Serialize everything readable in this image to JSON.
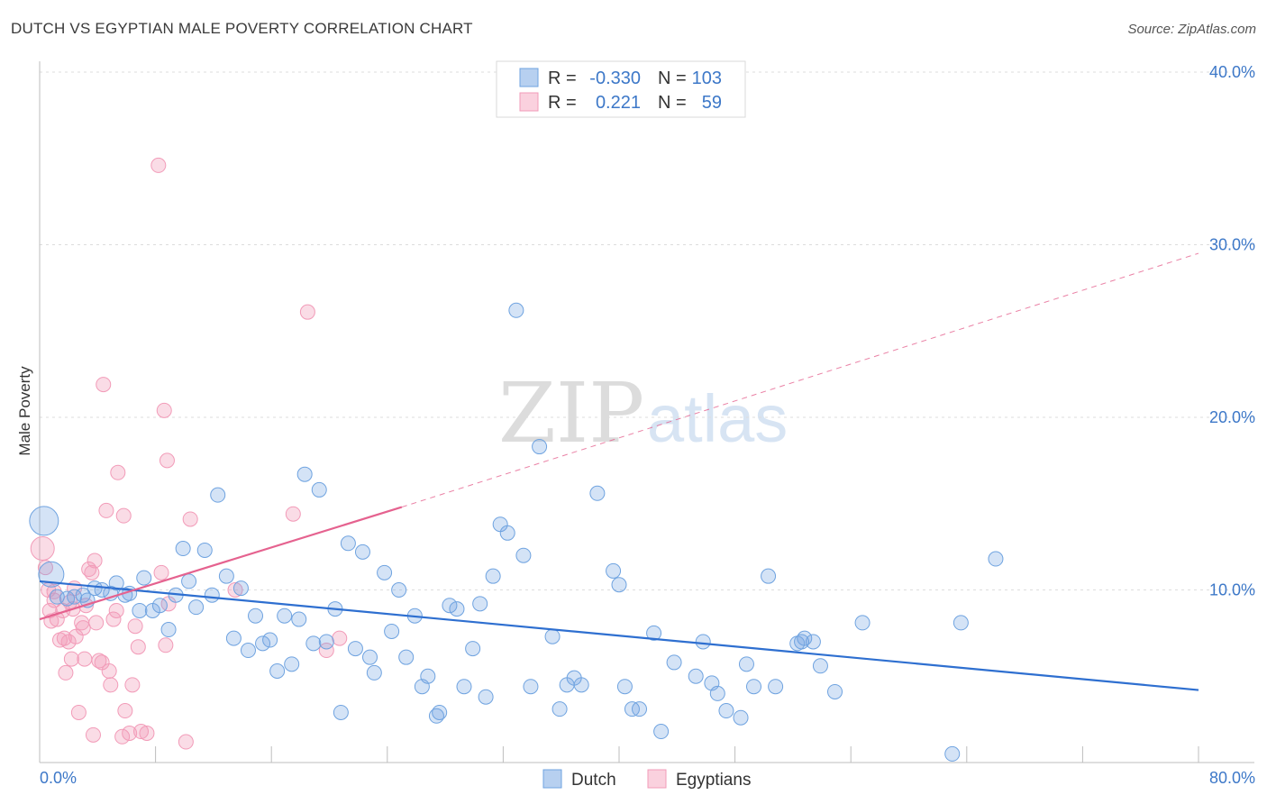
{
  "title": "DUTCH VS EGYPTIAN MALE POVERTY CORRELATION CHART",
  "source": "Source: ZipAtlas.com",
  "watermark": {
    "part1": "ZIP",
    "part2": "atlas"
  },
  "legend": {
    "rows": [
      {
        "r_label": "R =",
        "r_value": "-0.330",
        "n_label": "N =",
        "n_value": "103"
      },
      {
        "r_label": "R =",
        "r_value": "0.221",
        "n_label": "N =",
        "n_value": "59"
      }
    ]
  },
  "bottom_legend": [
    "Dutch",
    "Egyptians"
  ],
  "chart_data": {
    "type": "scatter",
    "title": "DUTCH VS EGYPTIAN MALE POVERTY CORRELATION CHART",
    "xlabel": "",
    "ylabel": "Male Poverty",
    "xlim": [
      0,
      80
    ],
    "ylim": [
      0,
      40
    ],
    "x_tick_labels": [
      "0.0%",
      "80.0%"
    ],
    "y_ticks": [
      10,
      20,
      30,
      40
    ],
    "y_tick_labels": [
      "10.0%",
      "20.0%",
      "30.0%",
      "40.0%"
    ],
    "grid": true,
    "legend_position": "top-center",
    "colors": {
      "dutch": "#6fa3e0",
      "egyptians": "#f29bb8",
      "dutch_line": "#2e6fd0",
      "egyptians_line": "#e5628f"
    },
    "series": [
      {
        "name": "Dutch",
        "r": -0.33,
        "n": 103,
        "trend": {
          "x": [
            0,
            80
          ],
          "y": [
            10.5,
            4.2
          ]
        },
        "points": [
          [
            0.3,
            14.0
          ],
          [
            0.8,
            10.9
          ],
          [
            1.2,
            9.6
          ],
          [
            1.9,
            9.5
          ],
          [
            2.4,
            9.6
          ],
          [
            3.0,
            9.7
          ],
          [
            3.3,
            9.4
          ],
          [
            3.8,
            10.1
          ],
          [
            4.3,
            10.0
          ],
          [
            4.9,
            9.8
          ],
          [
            5.3,
            10.4
          ],
          [
            5.9,
            9.7
          ],
          [
            6.2,
            9.8
          ],
          [
            6.9,
            8.8
          ],
          [
            7.2,
            10.7
          ],
          [
            7.8,
            8.8
          ],
          [
            8.3,
            9.1
          ],
          [
            8.9,
            7.7
          ],
          [
            9.4,
            9.7
          ],
          [
            9.9,
            12.4
          ],
          [
            10.3,
            10.5
          ],
          [
            10.8,
            9.0
          ],
          [
            11.4,
            12.3
          ],
          [
            11.9,
            9.7
          ],
          [
            12.3,
            15.5
          ],
          [
            12.9,
            10.8
          ],
          [
            13.4,
            7.2
          ],
          [
            13.9,
            10.1
          ],
          [
            14.4,
            6.5
          ],
          [
            14.9,
            8.5
          ],
          [
            15.4,
            6.9
          ],
          [
            15.9,
            7.1
          ],
          [
            16.4,
            5.3
          ],
          [
            16.9,
            8.5
          ],
          [
            17.4,
            5.7
          ],
          [
            17.9,
            8.3
          ],
          [
            18.3,
            16.7
          ],
          [
            18.9,
            6.9
          ],
          [
            19.3,
            15.8
          ],
          [
            19.8,
            7.0
          ],
          [
            20.4,
            8.9
          ],
          [
            20.8,
            2.9
          ],
          [
            21.3,
            12.7
          ],
          [
            21.8,
            6.6
          ],
          [
            22.3,
            12.2
          ],
          [
            22.8,
            6.1
          ],
          [
            23.1,
            5.2
          ],
          [
            23.8,
            11.0
          ],
          [
            24.3,
            7.6
          ],
          [
            24.8,
            10.0
          ],
          [
            25.3,
            6.1
          ],
          [
            25.9,
            8.5
          ],
          [
            26.4,
            4.4
          ],
          [
            26.8,
            5.0
          ],
          [
            27.4,
            2.7
          ],
          [
            27.6,
            2.9
          ],
          [
            28.3,
            9.1
          ],
          [
            28.8,
            8.9
          ],
          [
            29.3,
            4.4
          ],
          [
            29.9,
            6.6
          ],
          [
            30.4,
            9.2
          ],
          [
            30.8,
            3.8
          ],
          [
            31.3,
            10.8
          ],
          [
            31.8,
            13.8
          ],
          [
            32.3,
            13.3
          ],
          [
            32.9,
            26.2
          ],
          [
            33.4,
            12.0
          ],
          [
            33.9,
            4.4
          ],
          [
            34.5,
            18.3
          ],
          [
            35.4,
            7.3
          ],
          [
            35.9,
            3.1
          ],
          [
            36.4,
            4.5
          ],
          [
            36.9,
            4.9
          ],
          [
            37.4,
            4.5
          ],
          [
            38.5,
            15.6
          ],
          [
            39.6,
            11.1
          ],
          [
            40.0,
            10.3
          ],
          [
            40.4,
            4.4
          ],
          [
            40.9,
            3.1
          ],
          [
            41.4,
            3.1
          ],
          [
            42.4,
            7.5
          ],
          [
            42.9,
            1.8
          ],
          [
            43.8,
            5.8
          ],
          [
            45.3,
            5.0
          ],
          [
            45.8,
            7.0
          ],
          [
            46.4,
            4.6
          ],
          [
            46.8,
            4.0
          ],
          [
            47.4,
            3.0
          ],
          [
            48.4,
            2.6
          ],
          [
            48.8,
            5.7
          ],
          [
            49.3,
            4.4
          ],
          [
            50.3,
            10.8
          ],
          [
            50.8,
            4.4
          ],
          [
            52.3,
            6.9
          ],
          [
            52.8,
            7.2
          ],
          [
            53.4,
            7.0
          ],
          [
            53.9,
            5.6
          ],
          [
            54.9,
            4.1
          ],
          [
            56.8,
            8.1
          ],
          [
            63.0,
            0.5
          ],
          [
            63.6,
            8.1
          ],
          [
            66.0,
            11.8
          ],
          [
            52.6,
            7.0
          ]
        ]
      },
      {
        "name": "Egyptians",
        "r": 0.221,
        "n": 59,
        "trend": {
          "x": [
            0,
            25
          ],
          "y": [
            8.3,
            14.8
          ],
          "dashed_extension": {
            "x": [
              25,
              80
            ],
            "y": [
              14.8,
              29.5
            ]
          }
        },
        "points": [
          [
            0.2,
            12.4
          ],
          [
            0.4,
            11.3
          ],
          [
            0.6,
            10.0
          ],
          [
            0.8,
            8.2
          ],
          [
            1.0,
            9.9
          ],
          [
            1.2,
            8.3
          ],
          [
            1.4,
            7.1
          ],
          [
            1.6,
            8.8
          ],
          [
            1.7,
            7.2
          ],
          [
            1.8,
            5.2
          ],
          [
            2.0,
            7.0
          ],
          [
            2.1,
            9.3
          ],
          [
            2.2,
            6.0
          ],
          [
            2.4,
            10.1
          ],
          [
            2.5,
            7.3
          ],
          [
            2.7,
            2.9
          ],
          [
            2.9,
            8.1
          ],
          [
            3.1,
            6.0
          ],
          [
            3.2,
            9.1
          ],
          [
            3.4,
            11.2
          ],
          [
            3.6,
            11.0
          ],
          [
            3.7,
            1.6
          ],
          [
            3.8,
            11.7
          ],
          [
            3.9,
            8.1
          ],
          [
            4.1,
            5.9
          ],
          [
            4.3,
            5.8
          ],
          [
            4.4,
            21.9
          ],
          [
            4.6,
            14.6
          ],
          [
            4.8,
            5.3
          ],
          [
            4.9,
            4.5
          ],
          [
            5.1,
            8.3
          ],
          [
            5.3,
            8.8
          ],
          [
            5.4,
            16.8
          ],
          [
            5.7,
            1.5
          ],
          [
            5.8,
            14.3
          ],
          [
            5.9,
            3.0
          ],
          [
            6.2,
            1.7
          ],
          [
            6.4,
            4.5
          ],
          [
            6.6,
            7.9
          ],
          [
            6.8,
            6.7
          ],
          [
            7.0,
            1.8
          ],
          [
            7.4,
            1.7
          ],
          [
            8.2,
            34.6
          ],
          [
            8.4,
            11.0
          ],
          [
            8.6,
            20.4
          ],
          [
            8.7,
            6.8
          ],
          [
            8.8,
            17.5
          ],
          [
            8.9,
            9.2
          ],
          [
            10.1,
            1.2
          ],
          [
            10.4,
            14.1
          ],
          [
            13.5,
            10.0
          ],
          [
            17.5,
            14.4
          ],
          [
            18.5,
            26.1
          ],
          [
            19.8,
            6.5
          ],
          [
            20.7,
            7.2
          ],
          [
            1.0,
            9.4
          ],
          [
            2.3,
            8.9
          ],
          [
            3.0,
            7.8
          ],
          [
            0.7,
            8.8
          ]
        ]
      }
    ]
  }
}
